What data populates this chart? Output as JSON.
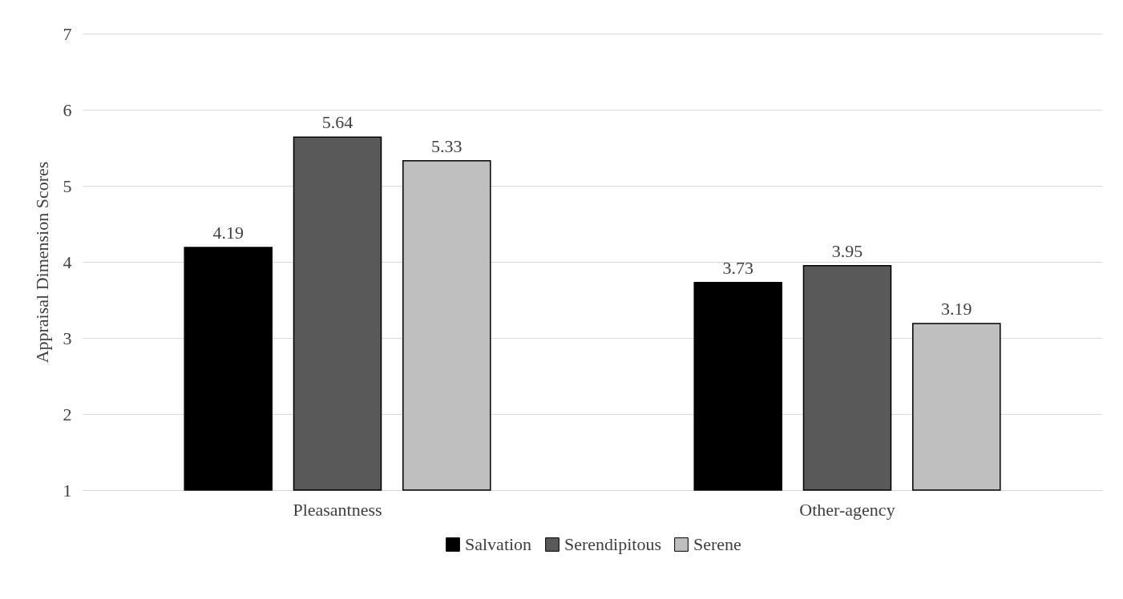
{
  "chart_data": {
    "type": "bar",
    "ylabel": "Appraisal Dimension Scores",
    "categories": [
      "Pleasantness",
      "Other-agency"
    ],
    "series": [
      {
        "name": "Salvation",
        "color": "#000000",
        "values": [
          4.19,
          3.73
        ]
      },
      {
        "name": "Serendipitous",
        "color": "#595959",
        "values": [
          5.64,
          3.95
        ]
      },
      {
        "name": "Serene",
        "color": "#bfbfbf",
        "values": [
          5.33,
          3.19
        ]
      }
    ],
    "ylim": [
      1,
      7
    ],
    "yticks": [
      1,
      2,
      3,
      4,
      5,
      6,
      7
    ],
    "grid": "y",
    "legend": "bottom",
    "data_labels": true
  }
}
